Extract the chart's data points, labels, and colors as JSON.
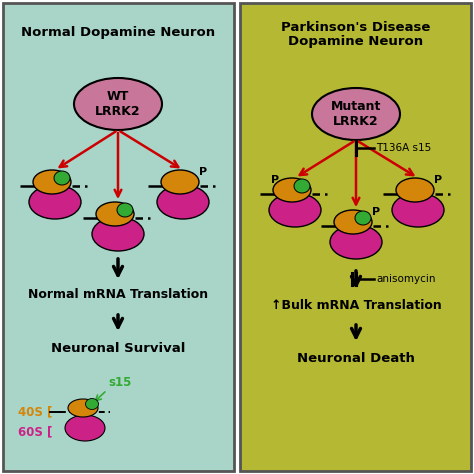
{
  "left_bg": "#a8d5c8",
  "right_bg": "#b5b832",
  "border_color": "#555555",
  "left_title": "Normal Dopamine Neuron",
  "right_title": "Parkinson's Disease\nDopamine Neuron",
  "left_lrrk2_label": "WT\nLRRK2",
  "right_lrrk2_label": "Mutant\nLRRK2",
  "lrrk2_color": "#c8779a",
  "subunit40s_color": "#d4860a",
  "subunit60s_color": "#cc2288",
  "s15_color": "#33aa33",
  "arrow_color_red": "#cc0000",
  "p_label_color": "#111111",
  "left_bottom1": "Normal mRNA Translation",
  "left_bottom2": "Neuronal Survival",
  "right_bottom1": "↑Bulk mRNA Translation",
  "right_bottom2": "Neuronal Death",
  "inhibitor_label": "T136A s15",
  "anisomycin_label": "anisomycin",
  "legend_40s": "40S [",
  "legend_60s": "60S [",
  "legend_s15": "s15",
  "legend_40s_color": "#d4860a",
  "legend_60s_color": "#cc2288",
  "legend_s15_color": "#33aa33"
}
